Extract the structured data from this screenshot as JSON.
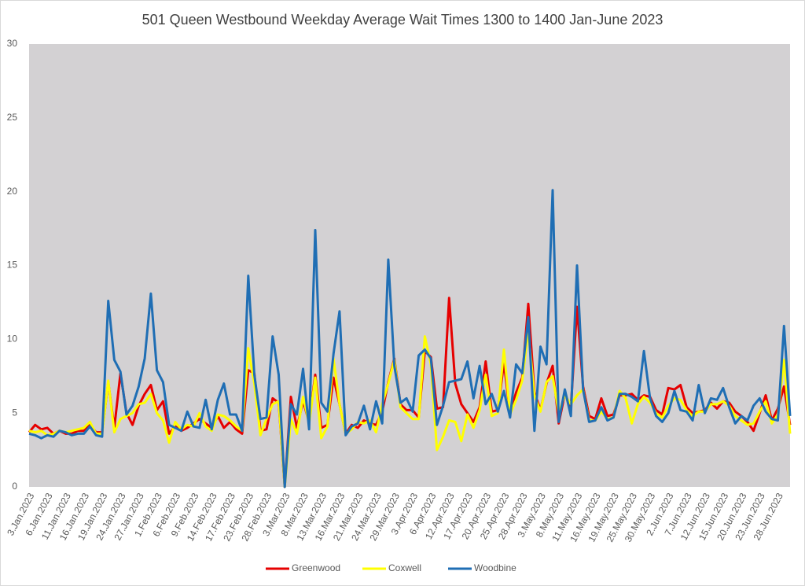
{
  "chart_data": {
    "type": "line",
    "title": "501 Queen Westbound Weekday Average Wait Times 1300 to 1400 Jan-June 2023",
    "categories": [
      "3.Jan.2023",
      null,
      null,
      "6.Jan.2023",
      null,
      null,
      "11.Jan.2023",
      null,
      null,
      "16.Jan.2023",
      null,
      null,
      "19.Jan.2023",
      null,
      null,
      "24.Jan.2023",
      null,
      null,
      "27.Jan.2023",
      null,
      null,
      "1.Feb.2023",
      null,
      null,
      "6.Feb.2023",
      null,
      null,
      "9.Feb.2023",
      null,
      null,
      "14.Feb.2023",
      null,
      null,
      "17.Feb.2023",
      null,
      null,
      "23.Feb.2023",
      null,
      null,
      "28.Feb.2023",
      null,
      null,
      "3.Mar.2023",
      null,
      null,
      "8.Mar.2023",
      null,
      null,
      "13.Mar.2023",
      null,
      null,
      "16.Mar.2023",
      null,
      null,
      "21.Mar.2023",
      null,
      null,
      "24.Mar.2023",
      null,
      null,
      "29.Mar.2023",
      null,
      null,
      "3.Apr.2023",
      null,
      null,
      "6.Apr.2023",
      null,
      null,
      "12.Apr.2023",
      null,
      null,
      "17.Apr.2023",
      null,
      null,
      "20.Apr.2023",
      null,
      null,
      "25.Apr.2023",
      null,
      null,
      "28.Apr.2023",
      null,
      null,
      "3.May.2023",
      null,
      null,
      "8.May.2023",
      null,
      null,
      "11.May.2023",
      null,
      null,
      "16.May.2023",
      null,
      null,
      "19.May.2023",
      null,
      null,
      "25.May.2023",
      null,
      null,
      "30.May.2023",
      null,
      null,
      "2.Jun.2023",
      null,
      null,
      "7.Jun.2023",
      null,
      null,
      "12.Jun.2023",
      null,
      null,
      "15.Jun.2023",
      null,
      null,
      "20.Jun.2023",
      null,
      null,
      "23.Jun.2023",
      null,
      null,
      "28.Jun.2023",
      null,
      null
    ],
    "series": [
      {
        "name": "Greenwood",
        "color": "#e60000",
        "values": [
          3.7,
          4.2,
          3.9,
          4.0,
          3.6,
          3.8,
          3.6,
          3.6,
          3.8,
          3.8,
          4.2,
          3.7,
          3.7,
          7.1,
          4.0,
          7.7,
          5.0,
          4.2,
          5.5,
          6.3,
          6.9,
          5.2,
          5.8,
          3.6,
          4.1,
          3.8,
          4.0,
          4.3,
          4.6,
          4.3,
          4.0,
          4.8,
          4.0,
          4.4,
          3.9,
          3.6,
          7.9,
          7.7,
          3.8,
          3.9,
          6.0,
          5.7,
          0,
          6.1,
          4.0,
          5.8,
          4.4,
          7.6,
          4.0,
          4.2,
          7.4,
          5.6,
          3.6,
          4.2,
          4.0,
          4.5,
          4.3,
          4.2,
          5.1,
          7.1,
          8.7,
          5.6,
          5.2,
          5.2,
          4.7,
          9.2,
          8.8,
          5.3,
          5.4,
          12.8,
          7.0,
          5.6,
          5.0,
          4.4,
          5.4,
          8.5,
          5.1,
          5.2,
          8.4,
          5.0,
          6.4,
          7.4,
          12.4,
          6.4,
          5.2,
          7.0,
          8.2,
          4.3,
          6.3,
          5.4,
          12.2,
          6.8,
          4.8,
          4.6,
          6.0,
          4.8,
          4.9,
          6.2,
          6.2,
          6.3,
          5.9,
          6.2,
          6.1,
          5.2,
          4.9,
          6.7,
          6.6,
          6.9,
          5.4,
          5.0,
          5.1,
          5.2,
          5.7,
          5.3,
          5.8,
          5.7,
          5.1,
          4.8,
          4.4,
          3.8,
          5.0,
          6.2,
          4.5,
          5.3,
          6.8,
          4.2
        ]
      },
      {
        "name": "Coxwell",
        "color": "#ffff00",
        "values": [
          3.8,
          3.7,
          3.8,
          3.5,
          3.6,
          3.8,
          3.7,
          3.8,
          3.9,
          4.0,
          4.4,
          3.6,
          3.6,
          7.2,
          3.7,
          4.6,
          4.8,
          5.0,
          5.6,
          5.7,
          6.3,
          5.0,
          4.5,
          3.0,
          4.4,
          3.9,
          4.2,
          4.1,
          5.0,
          4.1,
          3.8,
          4.9,
          4.8,
          4.5,
          4.1,
          3.8,
          9.4,
          7.0,
          3.5,
          4.6,
          5.6,
          5.8,
          0,
          4.6,
          3.6,
          6.1,
          4.3,
          7.4,
          3.3,
          4.1,
          8.7,
          5.6,
          3.6,
          3.9,
          4.4,
          4.3,
          4.5,
          3.7,
          5.6,
          7.0,
          8.6,
          5.4,
          5.0,
          4.6,
          4.6,
          10.2,
          8.3,
          2.5,
          3.4,
          4.5,
          4.4,
          3.1,
          4.9,
          4.0,
          5.2,
          7.6,
          4.8,
          5.0,
          9.3,
          4.9,
          5.9,
          7.2,
          10.6,
          6.2,
          5.1,
          7.1,
          7.5,
          5.0,
          6.2,
          5.6,
          6.2,
          6.6,
          4.5,
          4.5,
          5.1,
          4.6,
          4.7,
          6.5,
          6.0,
          4.3,
          5.6,
          6.1,
          5.7,
          5.0,
          4.7,
          5.5,
          6.0,
          5.9,
          5.2,
          4.8,
          5.1,
          5.1,
          5.6,
          5.6,
          5.8,
          5.5,
          4.8,
          4.5,
          4.2,
          4.3,
          5.1,
          5.8,
          4.3,
          4.9,
          8.6,
          3.6
        ]
      },
      {
        "name": "Woodbine",
        "color": "#1f6eb4",
        "values": [
          3.6,
          3.5,
          3.3,
          3.5,
          3.4,
          3.8,
          3.7,
          3.5,
          3.6,
          3.6,
          4.1,
          3.5,
          3.4,
          12.6,
          8.6,
          7.8,
          4.9,
          5.5,
          6.8,
          8.7,
          13.1,
          7.9,
          7.1,
          4.2,
          4.0,
          3.8,
          5.1,
          4.1,
          4.0,
          5.9,
          3.9,
          5.9,
          7.0,
          4.9,
          4.9,
          3.8,
          14.3,
          7.6,
          4.6,
          4.7,
          10.2,
          7.6,
          0,
          5.6,
          4.9,
          8.0,
          3.9,
          17.4,
          5.7,
          5.1,
          9.0,
          11.9,
          3.5,
          4.1,
          4.3,
          5.5,
          3.9,
          5.8,
          4.3,
          15.4,
          8.2,
          5.7,
          6.0,
          5.1,
          8.9,
          9.3,
          8.7,
          4.2,
          5.5,
          7.1,
          7.2,
          7.3,
          8.5,
          6.0,
          8.2,
          5.6,
          6.3,
          5.1,
          6.5,
          4.7,
          8.3,
          7.7,
          11.5,
          3.8,
          9.5,
          8.3,
          20.1,
          4.4,
          6.6,
          4.8,
          15.0,
          6.6,
          4.4,
          4.5,
          5.4,
          4.5,
          4.7,
          6.3,
          6.3,
          6.1,
          5.8,
          9.2,
          6.0,
          4.8,
          4.4,
          5.0,
          6.5,
          5.2,
          5.1,
          4.5,
          6.9,
          5.0,
          6.0,
          5.9,
          6.7,
          5.4,
          4.3,
          4.8,
          4.5,
          5.5,
          6.0,
          5.1,
          4.6,
          4.5,
          10.9,
          4.8
        ]
      }
    ],
    "ylim": [
      0,
      30
    ],
    "yticks": [
      0,
      5,
      10,
      15,
      20,
      25,
      30
    ],
    "grid": false,
    "legend": "bottom"
  }
}
